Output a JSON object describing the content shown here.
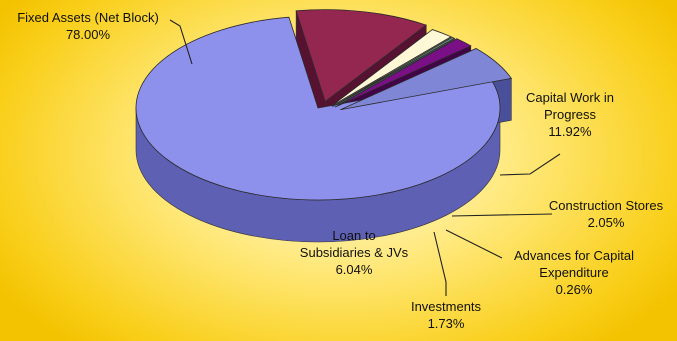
{
  "chart_data": {
    "type": "pie",
    "style": "3d-exploded",
    "slices": [
      {
        "label_lines": [
          "Fixed Assets (Net Block)"
        ],
        "pct_text": "78.00%",
        "value": 78.0,
        "color": "#8e91ec",
        "side": "#5e60b4"
      },
      {
        "label_lines": [
          "Capital Work in",
          "Progress"
        ],
        "pct_text": "11.92%",
        "value": 11.92,
        "color": "#93274f",
        "side": "#571232"
      },
      {
        "label_lines": [
          "Construction Stores"
        ],
        "pct_text": "2.05%",
        "value": 2.05,
        "color": "#fff8d6",
        "side": "#b5ad7e"
      },
      {
        "label_lines": [
          "Advances for Capital",
          "Expenditure"
        ],
        "pct_text": "0.26%",
        "value": 0.26,
        "color": "#6d8c84",
        "side": "#3f5a53"
      },
      {
        "label_lines": [
          "Investments"
        ],
        "pct_text": "1.73%",
        "value": 1.73,
        "color": "#7b0f86",
        "side": "#430349"
      },
      {
        "label_lines": [
          "Loan to",
          "Subsidiaries & JVs"
        ],
        "pct_text": "6.04%",
        "value": 6.04,
        "color": "#7f86d6",
        "side": "#4a4f9a"
      }
    ]
  }
}
